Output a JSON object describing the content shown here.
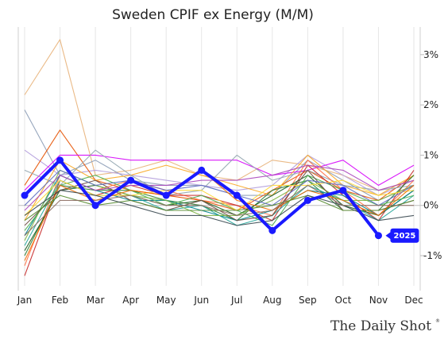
{
  "chart_data": {
    "type": "line",
    "title": "Sweden CPIF ex Energy (M/M)",
    "xlabel": "",
    "ylabel": "",
    "categories": [
      "Jan",
      "Feb",
      "Mar",
      "Apr",
      "May",
      "Jun",
      "Jul",
      "Aug",
      "Sep",
      "Oct",
      "Nov",
      "Dec"
    ],
    "ylim": [
      -1.6,
      3.55
    ],
    "y_ticks": [
      {
        "value": 3,
        "label": "3%"
      },
      {
        "value": 2,
        "label": "2%"
      },
      {
        "value": 1,
        "label": "1%"
      },
      {
        "value": 0,
        "label": "0%"
      },
      {
        "value": -1,
        "label": "-1%"
      }
    ],
    "y_axis_position": "right",
    "grid": "vertical and zero line",
    "highlight_series": {
      "name": "2025",
      "color": "#1a1aff",
      "values": [
        0.2,
        0.9,
        0.0,
        0.5,
        0.2,
        0.7,
        0.2,
        -0.5,
        0.1,
        0.3,
        -0.6,
        null
      ]
    },
    "series": [
      {
        "color": "#e8b27a",
        "values": [
          2.2,
          3.3,
          0.6,
          0.7,
          0.9,
          0.6,
          0.5,
          0.9,
          0.8,
          0.6,
          0.3,
          0.5
        ]
      },
      {
        "color": "#8a9bb5",
        "values": [
          1.9,
          0.6,
          0.9,
          0.5,
          0.4,
          0.4,
          0.2,
          0.2,
          0.9,
          0.5,
          0.1,
          0.4
        ]
      },
      {
        "color": "#b39ddb",
        "values": [
          1.1,
          0.6,
          0.7,
          0.6,
          0.5,
          0.4,
          0.3,
          0.4,
          1.0,
          0.6,
          0.2,
          0.5
        ]
      },
      {
        "color": "#e65100",
        "values": [
          0.4,
          1.5,
          0.5,
          0.3,
          0.2,
          0.1,
          -0.1,
          0.3,
          0.7,
          0.3,
          0.1,
          0.6
        ]
      },
      {
        "color": "#d500f9",
        "values": [
          0.3,
          1.0,
          1.0,
          0.9,
          0.9,
          0.9,
          0.9,
          0.6,
          0.7,
          0.9,
          0.4,
          0.8
        ]
      },
      {
        "color": "#f9a825",
        "values": [
          -0.3,
          0.9,
          0.5,
          0.6,
          0.8,
          0.6,
          0.4,
          0.2,
          1.0,
          0.4,
          0.2,
          0.6
        ]
      },
      {
        "color": "#90a4ae",
        "values": [
          0.7,
          0.4,
          1.1,
          0.6,
          0.2,
          0.3,
          1.0,
          0.5,
          0.7,
          0.4,
          0.3,
          0.4
        ]
      },
      {
        "color": "#ff7043",
        "values": [
          -1.2,
          0.6,
          0.3,
          0.5,
          0.3,
          0.1,
          0.0,
          -0.2,
          0.9,
          0.3,
          -0.2,
          0.5
        ]
      },
      {
        "color": "#c62828",
        "values": [
          -1.4,
          0.5,
          0.2,
          0.4,
          0.2,
          0.2,
          0.0,
          -0.3,
          0.8,
          0.2,
          -0.3,
          0.7
        ]
      },
      {
        "color": "#2e7d32",
        "values": [
          -1.0,
          0.4,
          0.3,
          0.3,
          0.1,
          0.0,
          -0.3,
          0.3,
          0.5,
          -0.1,
          -0.1,
          0.6
        ]
      },
      {
        "color": "#1b5e20",
        "values": [
          -0.9,
          0.3,
          0.4,
          0.2,
          0.0,
          0.1,
          -0.2,
          0.2,
          0.6,
          0.0,
          -0.2,
          0.3
        ]
      },
      {
        "color": "#26a69a",
        "values": [
          -0.8,
          0.5,
          0.2,
          0.2,
          -0.1,
          0.0,
          -0.4,
          -0.2,
          0.4,
          0.1,
          -0.3,
          0.2
        ]
      },
      {
        "color": "#00838f",
        "values": [
          -0.6,
          0.6,
          0.3,
          0.1,
          0.1,
          -0.1,
          -0.3,
          -0.1,
          0.3,
          0.2,
          -0.2,
          0.3
        ]
      },
      {
        "color": "#4caf50",
        "values": [
          -0.5,
          0.4,
          0.6,
          0.3,
          0.0,
          0.2,
          -0.1,
          -0.4,
          0.6,
          0.3,
          0.0,
          0.2
        ]
      },
      {
        "color": "#7cb342",
        "values": [
          -0.7,
          0.7,
          0.4,
          0.2,
          0.1,
          -0.2,
          -0.2,
          0.1,
          0.5,
          0.1,
          0.1,
          0.4
        ]
      },
      {
        "color": "#6d4c41",
        "values": [
          -0.4,
          0.3,
          0.5,
          0.1,
          -0.1,
          0.1,
          -0.3,
          -0.2,
          0.7,
          -0.1,
          -0.1,
          0.1
        ]
      },
      {
        "color": "#fdd835",
        "values": [
          -0.2,
          0.5,
          0.2,
          0.2,
          0.3,
          0.3,
          -0.1,
          0.4,
          0.4,
          0.5,
          0.2,
          0.3
        ]
      },
      {
        "color": "#ab47bc",
        "values": [
          -0.1,
          0.6,
          0.3,
          0.4,
          0.4,
          0.5,
          0.5,
          0.6,
          0.8,
          0.7,
          0.3,
          0.5
        ]
      },
      {
        "color": "#5c6bc0",
        "values": [
          0.0,
          0.7,
          0.4,
          0.5,
          0.3,
          0.4,
          0.2,
          0.0,
          0.5,
          0.4,
          0.0,
          0.4
        ]
      },
      {
        "color": "#ef6c00",
        "values": [
          -1.1,
          0.4,
          0.1,
          0.3,
          0.2,
          0.7,
          0.1,
          -0.1,
          0.3,
          0.1,
          -0.2,
          0.4
        ]
      },
      {
        "color": "#558b2f",
        "values": [
          -0.3,
          0.2,
          0.0,
          0.1,
          -0.1,
          -0.1,
          -0.1,
          0.0,
          0.2,
          -0.1,
          -0.1,
          0.1
        ]
      },
      {
        "color": "#37474f",
        "values": [
          -0.2,
          0.3,
          0.2,
          0.0,
          -0.2,
          -0.2,
          -0.4,
          -0.3,
          0.2,
          0.0,
          -0.3,
          -0.2
        ]
      },
      {
        "color": "#8d6e63",
        "values": [
          -0.6,
          0.1,
          0.1,
          0.2,
          0.0,
          0.0,
          -0.2,
          -0.1,
          0.4,
          0.0,
          0.0,
          0.0
        ]
      }
    ]
  },
  "branding": {
    "text": "The Daily Shot",
    "mark": "®"
  }
}
